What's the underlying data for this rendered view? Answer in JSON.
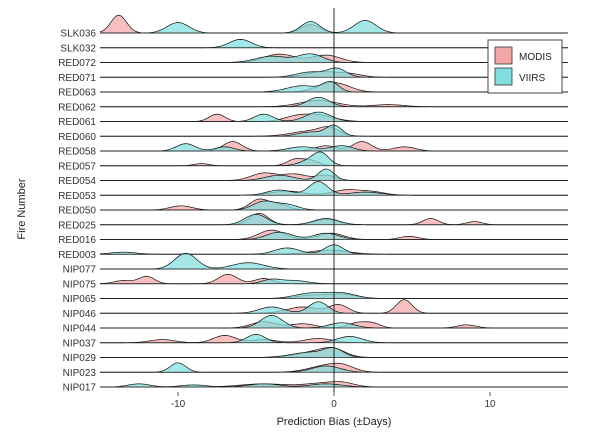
{
  "chart_data": {
    "type": "ridgeline",
    "title": "",
    "xlabel": "Prediction Bias (±Days)",
    "ylabel": "Fire Number",
    "xlim": [
      -15,
      15
    ],
    "xticks": [
      -10,
      0,
      10
    ],
    "reference_line_x": 0,
    "grid": false,
    "legend_position": "top-right",
    "categories": [
      "SLK036",
      "SLK032",
      "RED072",
      "RED071",
      "RED063",
      "RED062",
      "RED061",
      "RED060",
      "RED058",
      "RED057",
      "RED054",
      "RED053",
      "RED050",
      "RED025",
      "RED016",
      "RED003",
      "NIP077",
      "NIP075",
      "NIP065",
      "NIP046",
      "NIP044",
      "NIP037",
      "NIP029",
      "NIP023",
      "NIP017"
    ],
    "series": [
      {
        "name": "MODIS",
        "color": "#F4A6A6",
        "peaks": [
          [
            [
              -13.8,
              1.7,
              0.5
            ],
            [
              -1.5,
              0.8,
              0.6
            ]
          ],
          [],
          [
            [
              -3.5,
              0.8,
              1.0
            ],
            [
              -0.5,
              0.7,
              0.9
            ]
          ],
          [
            [
              -0.8,
              0.5,
              1.0
            ],
            [
              1.0,
              0.3,
              0.8
            ]
          ],
          [
            [
              -0.5,
              0.6,
              0.8
            ],
            [
              0.5,
              0.5,
              0.8
            ]
          ],
          [
            [
              -1.0,
              0.6,
              1.2
            ],
            [
              3.5,
              0.2,
              1.0
            ]
          ],
          [
            [
              -7.5,
              0.7,
              0.5
            ],
            [
              -1.0,
              0.6,
              1.0
            ],
            [
              -2.5,
              0.4,
              0.8
            ]
          ],
          [
            [
              -1.5,
              0.5,
              1.2
            ],
            [
              -0.3,
              0.6,
              0.6
            ]
          ],
          [
            [
              -6.5,
              0.9,
              0.6
            ],
            [
              1.8,
              0.9,
              0.6
            ],
            [
              4.5,
              0.4,
              0.7
            ],
            [
              -0.5,
              0.5,
              0.7
            ]
          ],
          [
            [
              -2.5,
              0.6,
              0.5
            ],
            [
              -1.5,
              0.5,
              0.5
            ],
            [
              -8.5,
              0.2,
              0.5
            ]
          ],
          [
            [
              -4.5,
              0.7,
              0.8
            ],
            [
              -2.5,
              0.6,
              0.8
            ],
            [
              -0.5,
              0.5,
              0.6
            ]
          ],
          [
            [
              0.8,
              0.5,
              0.9
            ],
            [
              2.5,
              0.3,
              0.8
            ],
            [
              -3.0,
              0.4,
              1.0
            ]
          ],
          [
            [
              -9.8,
              0.4,
              0.7
            ],
            [
              -4.8,
              1.0,
              0.6
            ],
            [
              -3.5,
              0.5,
              0.6
            ]
          ],
          [
            [
              -4.8,
              1.1,
              0.6
            ],
            [
              6.2,
              0.6,
              0.5
            ],
            [
              9.0,
              0.3,
              0.5
            ],
            [
              -0.5,
              0.5,
              0.8
            ]
          ],
          [
            [
              -4.0,
              0.9,
              0.8
            ],
            [
              -0.2,
              0.6,
              0.8
            ],
            [
              4.8,
              0.3,
              0.6
            ]
          ],
          [
            [
              -0.3,
              0.4,
              1.2
            ]
          ],
          [],
          [
            [
              -13.5,
              0.3,
              0.6
            ],
            [
              -12.0,
              0.7,
              0.5
            ],
            [
              -6.8,
              0.9,
              0.6
            ],
            [
              -4.5,
              0.5,
              0.6
            ]
          ],
          [
            [
              0.5,
              0.4,
              0.9
            ],
            [
              -1.5,
              0.3,
              0.9
            ]
          ],
          [
            [
              -2.0,
              0.6,
              1.0
            ],
            [
              0.3,
              0.8,
              0.6
            ],
            [
              4.5,
              1.3,
              0.5
            ]
          ],
          [
            [
              -4.5,
              0.6,
              0.8
            ],
            [
              -2.0,
              0.4,
              0.8
            ],
            [
              1.5,
              0.5,
              0.6
            ],
            [
              2.5,
              0.4,
              0.5
            ],
            [
              8.5,
              0.3,
              0.6
            ]
          ],
          [
            [
              -7.0,
              0.7,
              0.7
            ],
            [
              -4.5,
              0.3,
              0.8
            ],
            [
              -11.0,
              0.3,
              0.8
            ],
            [
              -1.0,
              0.4,
              0.9
            ]
          ],
          [
            [
              -1.0,
              0.6,
              1.2
            ],
            [
              0.0,
              0.5,
              0.7
            ]
          ],
          [
            [
              -0.8,
              0.5,
              1.0
            ],
            [
              0.5,
              0.6,
              0.8
            ]
          ],
          [
            [
              -4.5,
              0.3,
              1.5
            ],
            [
              -1.0,
              0.3,
              1.0
            ],
            [
              0.5,
              0.4,
              0.8
            ]
          ]
        ]
      },
      {
        "name": "VIIRS",
        "color": "#7FDEDE",
        "peaks": [
          [
            [
              -10.0,
              1.0,
              0.7
            ],
            [
              -1.5,
              1.1,
              0.6
            ],
            [
              2.0,
              1.2,
              0.7
            ]
          ],
          [
            [
              -6.0,
              0.8,
              0.7
            ]
          ],
          [
            [
              -4.0,
              0.6,
              1.0
            ],
            [
              -1.5,
              0.8,
              0.8
            ]
          ],
          [
            [
              -1.5,
              0.5,
              0.9
            ],
            [
              0.2,
              0.8,
              0.6
            ]
          ],
          [
            [
              -2.0,
              0.6,
              1.0
            ],
            [
              -0.2,
              0.9,
              0.5
            ]
          ],
          [
            [
              -1.0,
              0.9,
              0.7
            ]
          ],
          [
            [
              -4.5,
              0.7,
              0.6
            ],
            [
              -1.0,
              0.9,
              0.8
            ]
          ],
          [
            [
              0.0,
              1.0,
              0.5
            ],
            [
              -1.5,
              0.4,
              0.8
            ]
          ],
          [
            [
              -9.5,
              0.7,
              0.6
            ],
            [
              -7.0,
              0.4,
              0.6
            ],
            [
              -2.0,
              0.4,
              0.9
            ],
            [
              0.5,
              0.5,
              0.7
            ]
          ],
          [
            [
              -0.8,
              1.0,
              0.5
            ],
            [
              -1.5,
              0.5,
              0.7
            ]
          ],
          [
            [
              -3.5,
              0.5,
              0.9
            ],
            [
              -0.5,
              1.1,
              0.5
            ]
          ],
          [
            [
              -1.0,
              1.3,
              0.6
            ],
            [
              -3.5,
              0.5,
              0.8
            ],
            [
              2.0,
              0.3,
              1.0
            ]
          ],
          [
            [
              -4.5,
              0.8,
              0.7
            ],
            [
              -3.0,
              0.5,
              0.7
            ]
          ],
          [
            [
              -5.0,
              1.0,
              0.7
            ],
            [
              -0.5,
              0.6,
              0.8
            ]
          ],
          [
            [
              -3.5,
              0.7,
              0.8
            ],
            [
              -0.5,
              0.6,
              0.8
            ]
          ],
          [
            [
              -13.5,
              0.2,
              0.8
            ],
            [
              -3.0,
              0.6,
              0.8
            ],
            [
              0.0,
              0.9,
              0.6
            ]
          ],
          [
            [
              -9.5,
              1.5,
              0.7
            ],
            [
              -5.5,
              0.6,
              1.0
            ]
          ],
          [
            [
              -4.0,
              0.4,
              0.6
            ],
            [
              -2.5,
              0.3,
              0.8
            ]
          ],
          [
            [
              -1.5,
              0.5,
              1.0
            ],
            [
              0.5,
              0.5,
              0.9
            ]
          ],
          [
            [
              -4.0,
              0.6,
              0.8
            ],
            [
              -1.0,
              1.1,
              0.6
            ]
          ],
          [
            [
              -4.0,
              1.2,
              0.7
            ],
            [
              0.5,
              0.5,
              0.8
            ]
          ],
          [
            [
              -5.0,
              0.8,
              0.6
            ],
            [
              1.0,
              0.6,
              0.8
            ]
          ],
          [
            [
              -1.5,
              0.5,
              1.2
            ],
            [
              0.0,
              0.7,
              0.6
            ]
          ],
          [
            [
              -10.0,
              0.9,
              0.5
            ],
            [
              -0.5,
              0.6,
              0.9
            ]
          ],
          [
            [
              -12.5,
              0.3,
              0.7
            ],
            [
              -9.0,
              0.2,
              0.8
            ],
            [
              -4.5,
              0.3,
              1.0
            ],
            [
              -0.5,
              0.3,
              1.0
            ]
          ]
        ]
      }
    ]
  }
}
